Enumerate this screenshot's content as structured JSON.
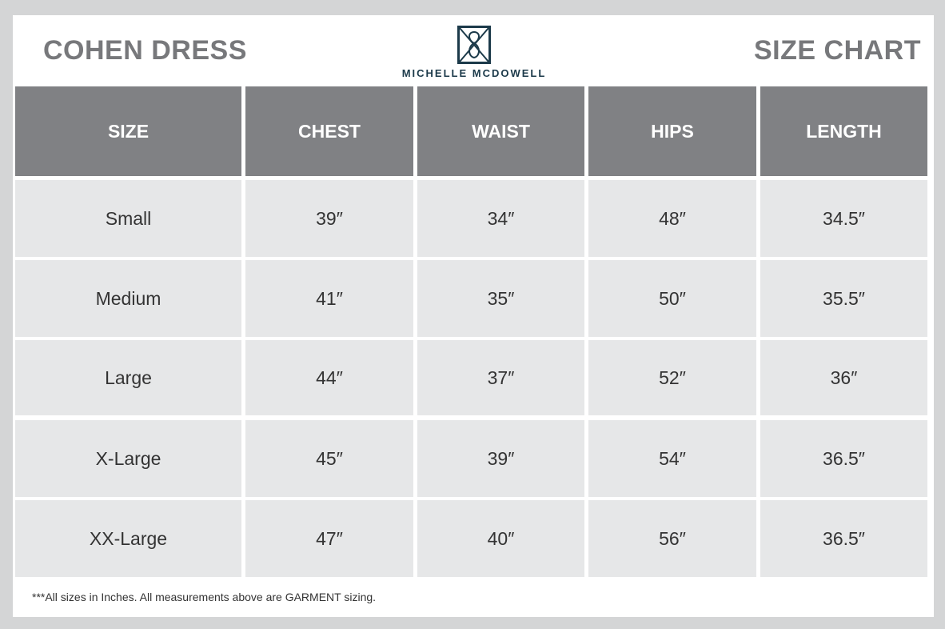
{
  "header": {
    "product_title": "COHEN DRESS",
    "chart_title": "SIZE CHART",
    "brand": {
      "name": "MICHELLE MCDOWELL",
      "logo_icon": "monogram-logo-icon",
      "color": "#1c3a4a"
    }
  },
  "table": {
    "columns": [
      "SIZE",
      "CHEST",
      "WAIST",
      "HIPS",
      "LENGTH"
    ],
    "rows": [
      [
        "Small",
        "39″",
        "34″",
        "48″",
        "34.5″"
      ],
      [
        "Medium",
        "41″",
        "35″",
        "50″",
        "35.5″"
      ],
      [
        "Large",
        "44″",
        "37″",
        "52″",
        "36″"
      ],
      [
        "X-Large",
        "45″",
        "39″",
        "54″",
        "36.5″"
      ],
      [
        "XX-Large",
        "47″",
        "40″",
        "56″",
        "36.5″"
      ]
    ],
    "header_color": "#808184",
    "cell_color": "#e6e7e8"
  },
  "footer": {
    "note": "***All sizes in Inches. All measurements above are GARMENT sizing."
  }
}
